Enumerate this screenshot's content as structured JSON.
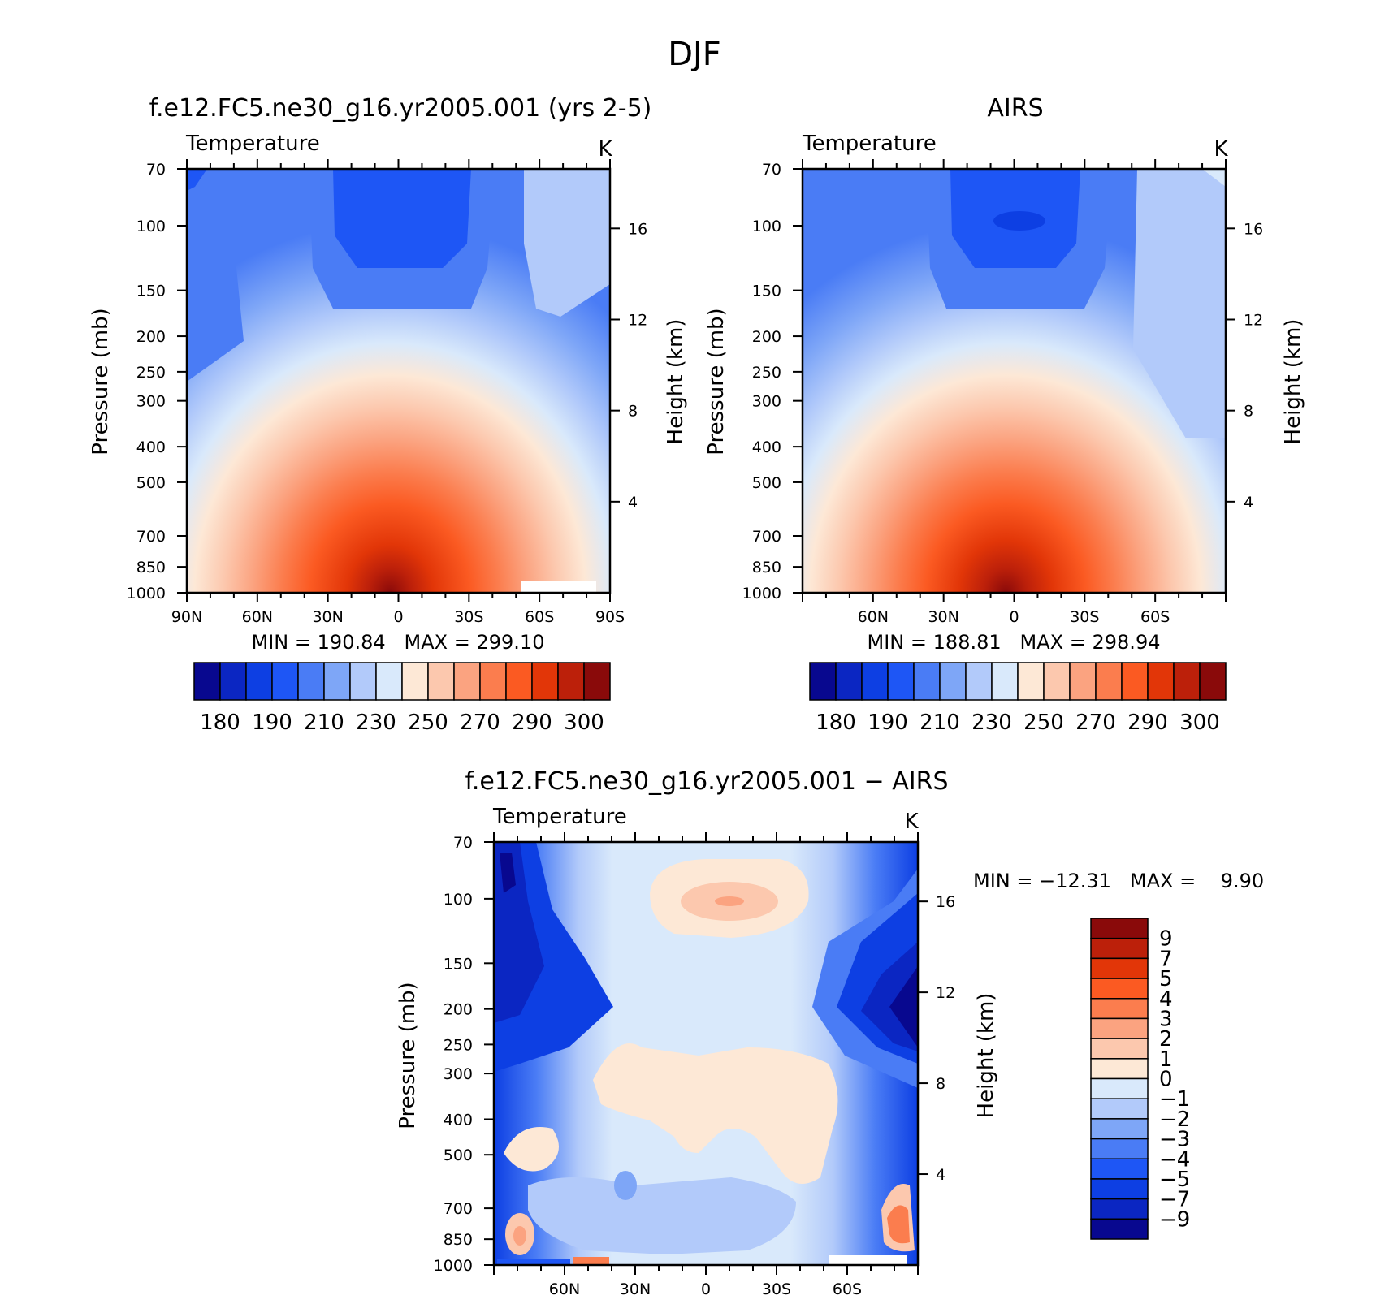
{
  "figure": {
    "title": "DJF",
    "colors": {
      "temperature_scale": [
        "#08088f",
        "#0b26c2",
        "#0d3fe3",
        "#1e56f5",
        "#4a7cf5",
        "#7ea6f7",
        "#b2cafa",
        "#d9e9fb",
        "#fde8d6",
        "#fcc8ae",
        "#fba380",
        "#fb7d4e",
        "#fb5a22",
        "#e23608",
        "#bc200a",
        "#8a0a0a"
      ],
      "difference_scale": [
        "#08088f",
        "#0b26c2",
        "#0d3fe3",
        "#1e56f5",
        "#4a7cf5",
        "#7ea6f7",
        "#b2cafa",
        "#d9e9fb",
        "#fde8d6",
        "#fcc8ae",
        "#fba380",
        "#fb7d4e",
        "#fb5a22",
        "#e23608",
        "#bc200a",
        "#8a0a0a"
      ]
    }
  },
  "chart_data": [
    {
      "type": "heatmap",
      "title": "f.e12.FC5.ne30_g16.yr2005.001 (yrs 2-5)",
      "subtitle": "Temperature",
      "units": "K",
      "ylabel": "Pressure (mb)",
      "y2label": "Height (km)",
      "xticks": [
        "90N",
        "60N",
        "30N",
        "0",
        "30S",
        "60S",
        "90S"
      ],
      "yticks": [
        70,
        100,
        150,
        200,
        250,
        300,
        400,
        500,
        700,
        850,
        1000
      ],
      "y2ticks": [
        4,
        8,
        12,
        16
      ],
      "min": "190.84",
      "max": "299.10",
      "stats": {
        "min_label": "MIN",
        "max_label": "MAX",
        "separator": "="
      },
      "colorbar_labels": [
        "180",
        "190",
        "210",
        "230",
        "250",
        "270",
        "290",
        "300"
      ]
    },
    {
      "type": "heatmap",
      "title": "AIRS",
      "subtitle": "Temperature",
      "units": "K",
      "ylabel": "Pressure (mb)",
      "y2label": "Height (km)",
      "xticks": [
        "60N",
        "30N",
        "0",
        "30S",
        "60S"
      ],
      "yticks": [
        70,
        100,
        150,
        200,
        250,
        300,
        400,
        500,
        700,
        850,
        1000
      ],
      "y2ticks": [
        4,
        8,
        12,
        16
      ],
      "min": "188.81",
      "max": "298.94",
      "stats": {
        "min_label": "MIN",
        "max_label": "MAX",
        "separator": "="
      },
      "colorbar_labels": [
        "180",
        "190",
        "210",
        "230",
        "250",
        "270",
        "290",
        "300"
      ]
    },
    {
      "type": "heatmap",
      "title": "f.e12.FC5.ne30_g16.yr2005.001 − AIRS",
      "subtitle": "Temperature",
      "units": "K",
      "ylabel": "Pressure (mb)",
      "y2label": "Height (km)",
      "xticks": [
        "60N",
        "30N",
        "0",
        "30S",
        "60S"
      ],
      "yticks": [
        70,
        100,
        150,
        200,
        250,
        300,
        400,
        500,
        700,
        850,
        1000
      ],
      "y2ticks": [
        4,
        8,
        12,
        16
      ],
      "min": "−12.31",
      "max": "9.90",
      "stats": {
        "min_label": "MIN",
        "max_label": "MAX",
        "separator": "="
      },
      "colorbar_labels": [
        "9",
        "7",
        "5",
        "4",
        "3",
        "2",
        "1",
        "0",
        "−1",
        "−2",
        "−3",
        "−4",
        "−5",
        "−7",
        "−9"
      ]
    }
  ]
}
